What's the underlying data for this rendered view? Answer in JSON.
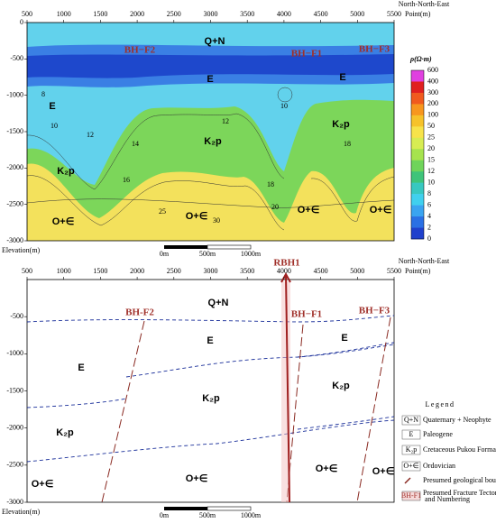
{
  "top_panel": {
    "direction": "North-North-East",
    "x_axis_label": "Point(m)",
    "y_axis_label": "Elevation(m)",
    "x_ticks": [
      500,
      1000,
      1500,
      2000,
      2500,
      3000,
      3500,
      4000,
      4500,
      5000,
      5500
    ],
    "y_ticks": [
      0,
      -500,
      -1000,
      -1500,
      -2000,
      -2500,
      -3000
    ],
    "labels": [
      "Q+N",
      "BH−F2",
      "BH−F1",
      "BH−F3",
      "E",
      "E",
      "E",
      "K₂p",
      "K₂p",
      "K₂p",
      "O+∈",
      "O+∈",
      "O+∈",
      "O+∈"
    ],
    "contour_labels": [
      "8",
      "10",
      "12",
      "14",
      "16",
      "18",
      "20",
      "25",
      "30",
      "12",
      "10",
      "18"
    ],
    "colorbar": {
      "title": "ρ(Ω·m)",
      "ticks": [
        600,
        400,
        300,
        200,
        100,
        50,
        25,
        20,
        15,
        12,
        10,
        8,
        6,
        4,
        2,
        0
      ]
    },
    "scale_bar": [
      "0m",
      "500m",
      "1000m"
    ]
  },
  "bottom_panel": {
    "direction": "North-North-East",
    "x_axis_label": "Point(m)",
    "y_axis_label": "Elevation(m)",
    "borehole": "RBH1",
    "x_ticks": [
      500,
      1000,
      1500,
      2000,
      2500,
      3000,
      3500,
      4000,
      4500,
      5000,
      5500
    ],
    "y_ticks": [
      -500,
      -1000,
      -1500,
      -2000,
      -2500,
      -3000
    ],
    "labels": [
      "Q+N",
      "BH-F2",
      "BH−F1",
      "BH−F3",
      "E",
      "E",
      "E",
      "K₂p",
      "K₂p",
      "K₂p",
      "O+∈",
      "O+∈",
      "O+∈",
      "O+∈"
    ],
    "scale_bar": [
      "0m",
      "500m",
      "1000m"
    ]
  },
  "legend": {
    "title": "Legend",
    "items": [
      {
        "symbol": "Q+N",
        "text": "Quaternary + Neophyte"
      },
      {
        "symbol": "E",
        "text": "Paleogene"
      },
      {
        "symbol": "K₂p",
        "text": "Cretaceous Pukou Formation"
      },
      {
        "symbol": "O+∈",
        "text": "Ordovician"
      },
      {
        "text": "Presumed geological boundaries"
      },
      {
        "symbol": "BH-F1",
        "text": "Presumed Fracture Tectonics and Numbering"
      }
    ]
  }
}
